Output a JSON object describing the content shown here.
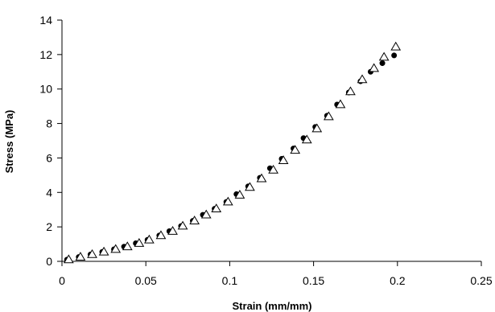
{
  "chart_data": {
    "type": "scatter",
    "xlabel": "Strain (mm/mm)",
    "ylabel": "Stress (MPa)",
    "xlim": [
      0,
      0.25
    ],
    "ylim": [
      0,
      14
    ],
    "x_ticks": [
      0,
      0.05,
      0.1,
      0.15,
      0.2,
      0.25
    ],
    "x_tick_labels": [
      "0",
      "0.05",
      "0.1",
      "0.15",
      "0.2",
      "0.25"
    ],
    "y_ticks": [
      0,
      2,
      4,
      6,
      8,
      10,
      12,
      14
    ],
    "y_tick_labels": [
      "0",
      "2",
      "4",
      "6",
      "8",
      "10",
      "12",
      "14"
    ],
    "grid": false,
    "legend": "none",
    "series": [
      {
        "marker": "filled-circle",
        "color": "#000000",
        "x": [
          0.003,
          0.01,
          0.017,
          0.024,
          0.031,
          0.037,
          0.044,
          0.051,
          0.058,
          0.064,
          0.071,
          0.078,
          0.084,
          0.091,
          0.098,
          0.104,
          0.111,
          0.118,
          0.124,
          0.131,
          0.138,
          0.144,
          0.151,
          0.158,
          0.164,
          0.171,
          0.178,
          0.184,
          0.191,
          0.198
        ],
        "y": [
          0.1,
          0.25,
          0.4,
          0.55,
          0.7,
          0.85,
          1.05,
          1.25,
          1.5,
          1.75,
          2.05,
          2.35,
          2.7,
          3.05,
          3.45,
          3.9,
          4.35,
          4.85,
          5.4,
          5.95,
          6.55,
          7.15,
          7.8,
          8.45,
          9.1,
          9.8,
          10.45,
          11.0,
          11.5,
          11.95
        ]
      },
      {
        "marker": "open-triangle",
        "color": "#000000",
        "x": [
          0.004,
          0.011,
          0.018,
          0.025,
          0.032,
          0.039,
          0.046,
          0.052,
          0.059,
          0.066,
          0.072,
          0.079,
          0.086,
          0.092,
          0.099,
          0.106,
          0.112,
          0.119,
          0.126,
          0.132,
          0.139,
          0.146,
          0.152,
          0.159,
          0.166,
          0.172,
          0.179,
          0.186,
          0.192,
          0.199
        ],
        "y": [
          0.1,
          0.25,
          0.4,
          0.55,
          0.7,
          0.85,
          1.05,
          1.25,
          1.5,
          1.75,
          2.05,
          2.35,
          2.7,
          3.05,
          3.45,
          3.85,
          4.3,
          4.8,
          5.3,
          5.85,
          6.45,
          7.05,
          7.7,
          8.4,
          9.1,
          9.85,
          10.55,
          11.2,
          11.85,
          12.45
        ]
      }
    ]
  }
}
